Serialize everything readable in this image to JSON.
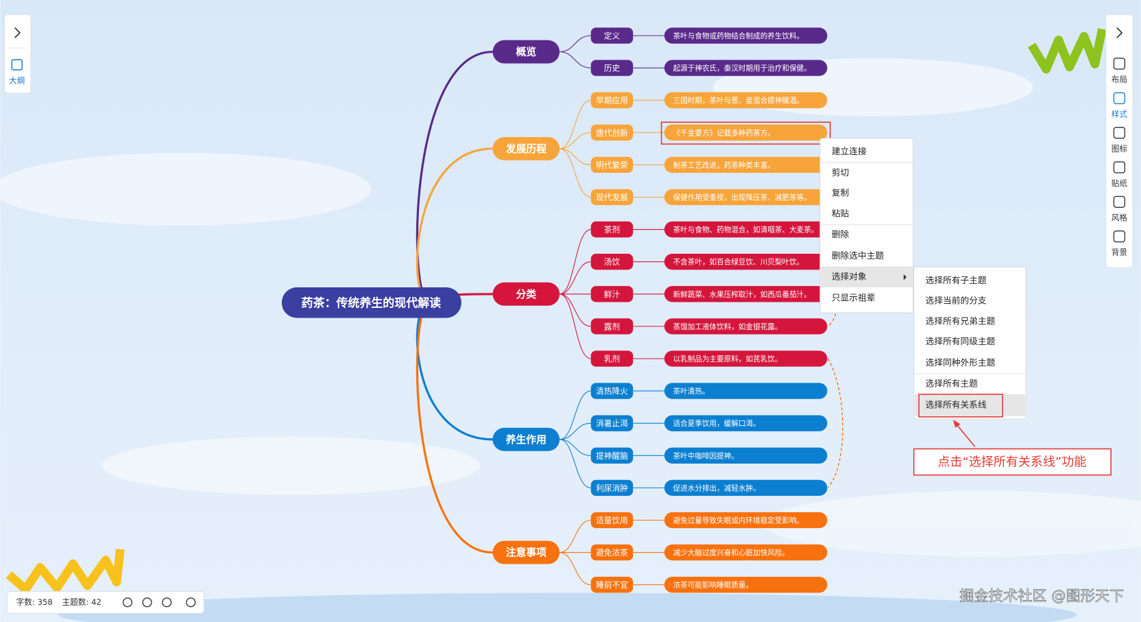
{
  "left_panel": {
    "outline": "大纲"
  },
  "right_panel": {
    "items": [
      "布局",
      "样式",
      "图标",
      "贴纸",
      "风格",
      "背景"
    ]
  },
  "mindmap": {
    "root": "药茶：传统养生的现代解读",
    "branches": [
      {
        "label": "概览",
        "color": "#5a2a8a",
        "children": [
          {
            "label": "定义",
            "desc": "茶叶与食物或药物结合制成的养生饮料。"
          },
          {
            "label": "历史",
            "desc": "起源于神农氏，秦汉时期用于治疗和保健。"
          }
        ]
      },
      {
        "label": "发展历程",
        "color": "#f7a43a",
        "children": [
          {
            "label": "早期应用",
            "desc": "三国时期，茶叶与葱、姜混合提神醒酒。"
          },
          {
            "label": "唐代创新",
            "desc": "《千金要方》记载多种药茶方。"
          },
          {
            "label": "明代繁荣",
            "desc": "制茶工艺改进，药茶种类丰富。"
          },
          {
            "label": "现代发展",
            "desc": "保健作用受重视，出现降压茶、减肥茶等。"
          }
        ]
      },
      {
        "label": "分类",
        "color": "#d4163c",
        "children": [
          {
            "label": "茶剂",
            "desc": "茶叶与食物、药物混合，如清咽茶、大麦茶。"
          },
          {
            "label": "汤饮",
            "desc": "不含茶叶，如百合绿豆饮、川贝梨叶饮。"
          },
          {
            "label": "鲜汁",
            "desc": "新鲜蔬菜、水果压榨取汁，如西瓜番茄汁。"
          },
          {
            "label": "露剂",
            "desc": "蒸馏加工液体饮料，如金银花露。"
          },
          {
            "label": "乳剂",
            "desc": "以乳制品为主要原料，如芪乳饮。"
          }
        ]
      },
      {
        "label": "养生作用",
        "color": "#0c7fd0",
        "children": [
          {
            "label": "清热降火",
            "desc": "茶叶清热。"
          },
          {
            "label": "消暑止渴",
            "desc": "适合夏季饮用，缓解口渴。"
          },
          {
            "label": "提神醒脑",
            "desc": "茶叶中咖啡因提神。"
          },
          {
            "label": "利尿消肿",
            "desc": "促进水分排出，减轻水肿。"
          }
        ]
      },
      {
        "label": "注意事项",
        "color": "#f7720f",
        "children": [
          {
            "label": "适量饮用",
            "desc": "避免过量导致失眠或内环境稳定受影响。"
          },
          {
            "label": "避免浓茶",
            "desc": "减少大脑过度兴奋和心脏加快风险。"
          },
          {
            "label": "睡前不宜",
            "desc": "浓茶可能影响睡眠质量。"
          }
        ]
      }
    ]
  },
  "context_menu": {
    "items": [
      "建立连接",
      "剪切",
      "复制",
      "粘贴",
      "删除",
      "删除选中主题",
      "选择对象",
      "只显示祖辈"
    ],
    "submenu": [
      "选择所有子主题",
      "选择当前的分支",
      "选择所有兄弟主题",
      "选择所有同级主题",
      "选择同种外形主题",
      "选择所有主题",
      "选择所有关系线"
    ]
  },
  "annotation": "点击“选择所有关系线”功能",
  "status_bar": {
    "word_count": "字数: 358",
    "topic_count": "主题数: 42"
  },
  "watermark": "掘金技术社区 @图形天下"
}
